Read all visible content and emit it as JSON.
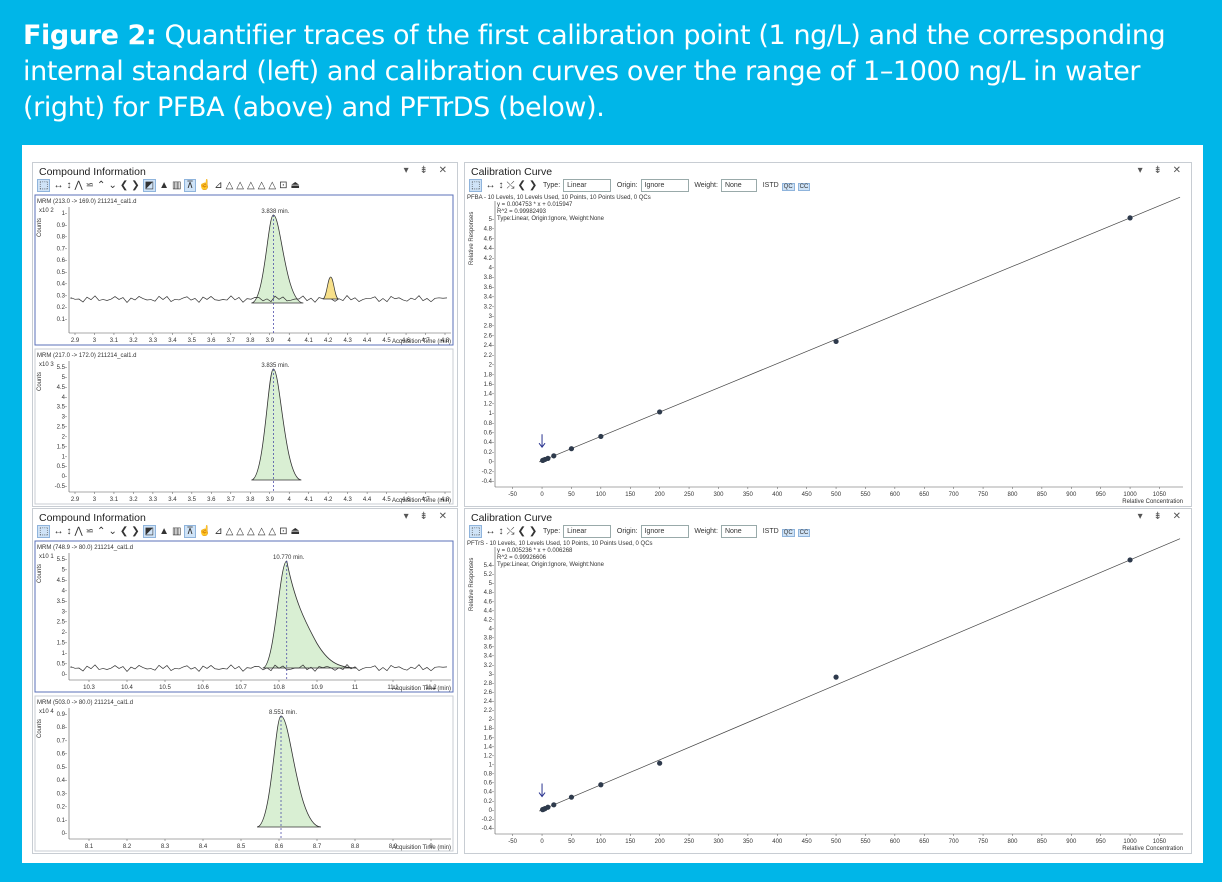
{
  "caption": {
    "bold": "Figure 2:",
    "text": " Quantifier traces of the first calibration point (1 ng/L) and the corresponding internal standard (left) and calibration curves over the range of 1–1000 ng/L in water (right) for PFBA (above) and PFTrDS (below)."
  },
  "panels": {
    "compound_title": "Compound Information",
    "calibration_title": "Calibration Curve",
    "window_controls": "▾ ⇟ ✕"
  },
  "calibration_toolbar": {
    "type_label": "Type:",
    "type_value": "Linear",
    "origin_label": "Origin:",
    "origin_value": "Ignore",
    "weight_label": "Weight:",
    "weight_value": "None",
    "istd": "ISTD",
    "qc": "QC",
    "cc": "CC"
  },
  "top": {
    "chrom1": {
      "header": "MRM (213.0 -> 169.0) 211214_cal1.d",
      "exp": "x10 2",
      "peak_label": "3.838 min.",
      "ylabel": "Counts",
      "xlabel": "Acquisition Time (min)",
      "xticks": [
        "2.9",
        "3",
        "3.1",
        "3.2",
        "3.3",
        "3.4",
        "3.5",
        "3.6",
        "3.7",
        "3.8",
        "3.9",
        "4",
        "4.1",
        "4.2",
        "4.3",
        "4.4",
        "4.5",
        "4.6",
        "4.7",
        "4.8"
      ],
      "yticks": [
        "1-",
        "0.9-",
        "0.8-",
        "0.7-",
        "0.6-",
        "0.5-",
        "0.4-",
        "0.3-",
        "0.2-",
        "0.1-"
      ]
    },
    "chrom2": {
      "header": "MRM (217.0 -> 172.0) 211214_cal1.d",
      "exp": "x10 3",
      "peak_label": "3.835 min.",
      "ylabel": "Counts",
      "xlabel": "Acquisition Time (min)",
      "xticks": [
        "2.9",
        "3",
        "3.1",
        "3.2",
        "3.3",
        "3.4",
        "3.5",
        "3.6",
        "3.7",
        "3.8",
        "3.9",
        "4",
        "4.1",
        "4.2",
        "4.3",
        "4.4",
        "4.5",
        "4.6",
        "4.7",
        "4.8"
      ],
      "yticks": [
        "5.5-",
        "5-",
        "4.5-",
        "4-",
        "3.5-",
        "3-",
        "2.5-",
        "2-",
        "1.5-",
        "1-",
        "0.5-",
        "0-",
        "-0.5-"
      ]
    },
    "calib": {
      "line1": "PFBA - 10 Levels, 10 Levels Used, 10 Points, 10 Points Used, 0 QCs",
      "line2": "y = 0.004753 * x + 0.015947",
      "line3": "R^2 = 0.99982493",
      "line4": "Type:Linear, Origin:Ignore, Weight:None",
      "ylabel": "Relative Responses",
      "xlabel": "Relative Concentration",
      "yticks": [
        "5-",
        "4.8-",
        "4.6-",
        "4.4-",
        "4.2-",
        "4-",
        "3.8-",
        "3.6-",
        "3.4-",
        "3.2-",
        "3-",
        "2.8-",
        "2.6-",
        "2.4-",
        "2.2-",
        "2-",
        "1.8-",
        "1.6-",
        "1.4-",
        "1.2-",
        "1-",
        "0.8-",
        "0.6-",
        "0.4-",
        "0.2-",
        "0-",
        "-0.2-",
        "-0.4-"
      ],
      "points": [
        [
          1,
          0.02
        ],
        [
          2,
          0.025
        ],
        [
          5,
          0.04
        ],
        [
          10,
          0.06
        ],
        [
          20,
          0.11
        ],
        [
          50,
          0.25
        ],
        [
          100,
          0.49
        ],
        [
          200,
          0.97
        ],
        [
          500,
          2.35
        ],
        [
          1000,
          4.77
        ]
      ]
    }
  },
  "bottom": {
    "chrom1": {
      "header": "MRM (748.9 -> 80.0) 211214_cal1.d",
      "exp": "x10 1",
      "peak_label": "10.770 min.",
      "ylabel": "Counts",
      "xlabel": "Acquisition Time (min)",
      "xticks": [
        "10.3",
        "10.4",
        "10.5",
        "10.6",
        "10.7",
        "10.8",
        "10.9",
        "11",
        "11.1",
        "11.2"
      ],
      "yticks": [
        "5.5-",
        "5-",
        "4.5-",
        "4-",
        "3.5-",
        "3-",
        "2.5-",
        "2-",
        "1.5-",
        "1-",
        "0.5-",
        "0-"
      ]
    },
    "chrom2": {
      "header": "MRM (503.0 -> 80.0) 211214_cal1.d",
      "exp": "x10 4",
      "peak_label": "8.551 min.",
      "ylabel": "Counts",
      "xlabel": "Acquisition Time (min)",
      "xticks": [
        "8.1",
        "8.2",
        "8.3",
        "8.4",
        "8.5",
        "8.6",
        "8.7",
        "8.8",
        "8.9",
        "9"
      ],
      "yticks": [
        "0.9-",
        "0.8-",
        "0.7-",
        "0.6-",
        "0.5-",
        "0.4-",
        "0.3-",
        "0.2-",
        "0.1-",
        "0-"
      ]
    },
    "calib": {
      "line1": "PFTrS - 10 Levels, 10 Levels Used, 10 Points, 10 Points Used, 0 QCs",
      "line2": "y = 0.005236 * x + 0.006268",
      "line3": "R^2 = 0.99926606",
      "line4": "Type:Linear, Origin:Ignore, Weight:None",
      "ylabel": "Relative Responses",
      "xlabel": "Relative Concentration",
      "yticks": [
        "5.4-",
        "5.2-",
        "5-",
        "4.8-",
        "4.6-",
        "4.4-",
        "4.2-",
        "4-",
        "3.8-",
        "3.6-",
        "3.4-",
        "3.2-",
        "3-",
        "2.8-",
        "2.6-",
        "2.4-",
        "2.2-",
        "2-",
        "1.8-",
        "1.6-",
        "1.4-",
        "1.2-",
        "1-",
        "0.8-",
        "0.6-",
        "0.4-",
        "0.2-",
        "0-",
        "-0.2-",
        "-0.4-"
      ],
      "points": [
        [
          1,
          0.01
        ],
        [
          2,
          0.015
        ],
        [
          5,
          0.03
        ],
        [
          10,
          0.06
        ],
        [
          20,
          0.11
        ],
        [
          50,
          0.27
        ],
        [
          100,
          0.53
        ],
        [
          200,
          0.98
        ],
        [
          500,
          2.78
        ],
        [
          1000,
          5.23
        ]
      ]
    }
  },
  "calib_xticks": [
    "-50",
    "0",
    "50",
    "100",
    "150",
    "200",
    "250",
    "300",
    "350",
    "400",
    "450",
    "500",
    "550",
    "600",
    "650",
    "700",
    "750",
    "800",
    "850",
    "900",
    "950",
    "1000",
    "1050"
  ]
}
